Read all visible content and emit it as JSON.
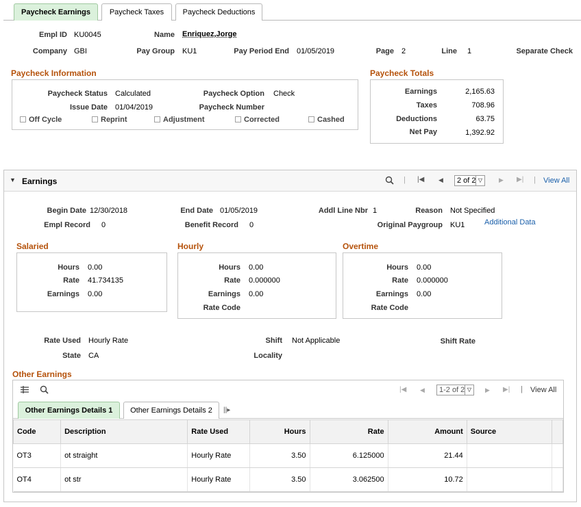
{
  "tabs": [
    "Paycheck Earnings",
    "Paycheck Taxes",
    "Paycheck Deductions"
  ],
  "header": {
    "empl_id_label": "Empl ID",
    "empl_id": "KU0045",
    "name_label": "Name",
    "name": "Enriquez,Jorge",
    "company_label": "Company",
    "company": "GBI",
    "pay_group_label": "Pay Group",
    "pay_group": "KU1",
    "pay_period_end_label": "Pay Period End",
    "pay_period_end": "01/05/2019",
    "page_label": "Page",
    "page": "2",
    "line_label": "Line",
    "line": "1",
    "separate_check_label": "Separate Check"
  },
  "paycheck_info": {
    "title": "Paycheck Information",
    "status_label": "Paycheck Status",
    "status": "Calculated",
    "option_label": "Paycheck Option",
    "option": "Check",
    "issue_date_label": "Issue Date",
    "issue_date": "01/04/2019",
    "number_label": "Paycheck Number",
    "number": "",
    "checkboxes": [
      "Off Cycle",
      "Reprint",
      "Adjustment",
      "Corrected",
      "Cashed"
    ]
  },
  "totals": {
    "title": "Paycheck Totals",
    "rows": [
      {
        "label": "Earnings",
        "value": "2,165.63"
      },
      {
        "label": "Taxes",
        "value": "708.96"
      },
      {
        "label": "Deductions",
        "value": "63.75"
      },
      {
        "label": "Net Pay",
        "value": "1,392.92"
      }
    ]
  },
  "earnings": {
    "title": "Earnings",
    "pager": "2 of 2",
    "view_all": "View All",
    "begin_date_label": "Begin Date",
    "begin_date": "12/30/2018",
    "end_date_label": "End Date",
    "end_date": "01/05/2019",
    "addl_line_label": "Addl Line Nbr",
    "addl_line": "1",
    "reason_label": "Reason",
    "reason": "Not Specified",
    "empl_record_label": "Empl Record",
    "empl_record": "0",
    "benefit_record_label": "Benefit Record",
    "benefit_record": "0",
    "orig_paygroup_label": "Original Paygroup",
    "orig_paygroup": "KU1",
    "additional_data": "Additional Data",
    "salaried": {
      "title": "Salaried",
      "hours_label": "Hours",
      "hours": "0.00",
      "rate_label": "Rate",
      "rate": "41.734135",
      "earnings_label": "Earnings",
      "earnings": "0.00"
    },
    "hourly": {
      "title": "Hourly",
      "hours_label": "Hours",
      "hours": "0.00",
      "rate_label": "Rate",
      "rate": "0.000000",
      "earnings_label": "Earnings",
      "earnings": "0.00",
      "rate_code_label": "Rate Code"
    },
    "overtime": {
      "title": "Overtime",
      "hours_label": "Hours",
      "hours": "0.00",
      "rate_label": "Rate",
      "rate": "0.000000",
      "earnings_label": "Earnings",
      "earnings": "0.00",
      "rate_code_label": "Rate Code"
    },
    "rate_used_label": "Rate Used",
    "rate_used": "Hourly Rate",
    "shift_label": "Shift",
    "shift": "Not Applicable",
    "shift_rate_label": "Shift Rate",
    "state_label": "State",
    "state": "CA",
    "locality_label": "Locality"
  },
  "other_earnings": {
    "title": "Other Earnings",
    "pager": "1-2 of 2",
    "view_all": "View All",
    "tabs": [
      "Other Earnings Details 1",
      "Other Earnings Details 2"
    ],
    "columns": [
      "Code",
      "Description",
      "Rate Used",
      "Hours",
      "Rate",
      "Amount",
      "Source"
    ],
    "rows": [
      {
        "code": "OT3",
        "description": "ot straight",
        "rate_used": "Hourly Rate",
        "hours": "3.50",
        "rate": "6.125000",
        "amount": "21.44",
        "source": ""
      },
      {
        "code": "OT4",
        "description": "ot str",
        "rate_used": "Hourly Rate",
        "hours": "3.50",
        "rate": "3.062500",
        "amount": "10.72",
        "source": ""
      }
    ]
  }
}
